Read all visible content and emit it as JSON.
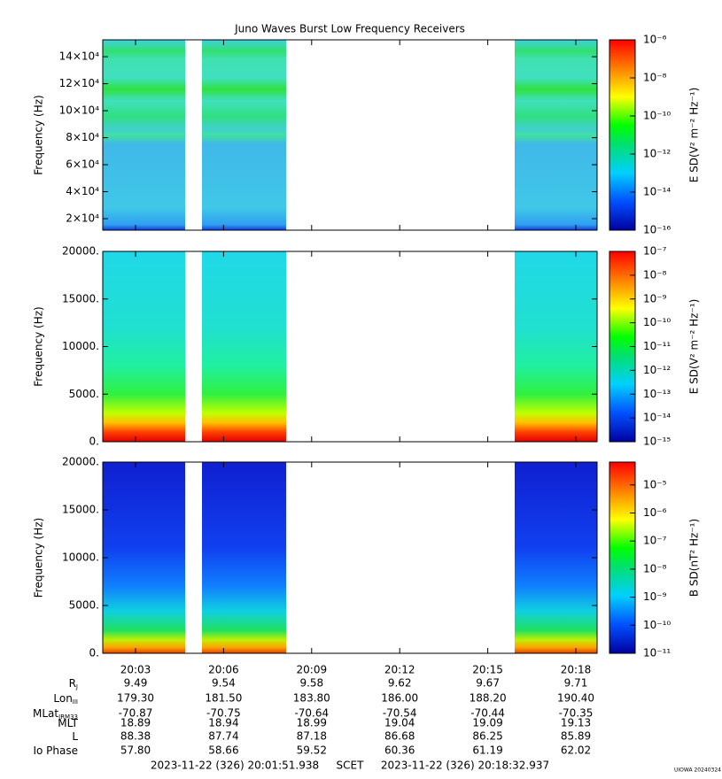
{
  "title": "Juno Waves Burst Low Frequency Receivers",
  "time_axis": {
    "ticks": [
      "20:03",
      "20:06",
      "20:09",
      "20:12",
      "20:15",
      "20:18"
    ]
  },
  "ephemeris": [
    {
      "label": "R",
      "sub": "J",
      "values": [
        "9.49",
        "9.54",
        "9.58",
        "9.62",
        "9.67",
        "9.71"
      ]
    },
    {
      "label": "Lon",
      "sub": "III",
      "values": [
        "179.30",
        "181.50",
        "183.80",
        "186.00",
        "188.20",
        "190.40"
      ]
    },
    {
      "label": "MLat",
      "sub": "JRM33",
      "values": [
        "-70.87",
        "-70.75",
        "-70.64",
        "-70.54",
        "-70.44",
        "-70.35"
      ]
    },
    {
      "label": "MLT",
      "values": [
        "18.89",
        "18.94",
        "18.99",
        "19.04",
        "19.09",
        "19.13"
      ]
    },
    {
      "label": "L",
      "values": [
        "88.38",
        "87.74",
        "87.18",
        "86.68",
        "86.25",
        "85.89"
      ]
    },
    {
      "label": "Io Phase",
      "values": [
        "57.80",
        "58.66",
        "59.52",
        "60.36",
        "61.19",
        "62.02"
      ]
    }
  ],
  "footer": {
    "start": "2023-11-22 (326) 20:01:51.938",
    "middle": "SCET",
    "end": "2023-11-22 (326) 20:18:32.937",
    "credit": "UIOWA 20240324"
  },
  "chart_data": [
    {
      "type": "spectrogram",
      "ylabel": "Frequency (Hz)",
      "ylim": [
        11500,
        152500
      ],
      "yticks": [
        {
          "value": 20000,
          "label": "2×10⁴"
        },
        {
          "value": 40000,
          "label": "4×10⁴"
        },
        {
          "value": 60000,
          "label": "6×10⁴"
        },
        {
          "value": 80000,
          "label": "8×10⁴"
        },
        {
          "value": 100000,
          "label": "10×10⁴"
        },
        {
          "value": 120000,
          "label": "12×10⁴"
        },
        {
          "value": 140000,
          "label": "14×10⁴"
        }
      ],
      "clabel": "E SD(V² m⁻² Hz⁻¹)",
      "clim": [
        1e-16,
        1e-06
      ],
      "cscale": "log",
      "cticks": [
        {
          "value": 1e-16,
          "label": "10⁻¹⁶"
        },
        {
          "value": 1e-14,
          "label": "10⁻¹⁴"
        },
        {
          "value": 1e-12,
          "label": "10⁻¹²"
        },
        {
          "value": 1e-10,
          "label": "10⁻¹⁰"
        },
        {
          "value": 1e-08,
          "label": "10⁻⁸"
        },
        {
          "value": 1e-06,
          "label": "10⁻⁶"
        }
      ]
    },
    {
      "type": "spectrogram",
      "ylabel": "Frequency (Hz)",
      "ylim": [
        0,
        20000
      ],
      "yticks": [
        {
          "value": 0,
          "label": "0."
        },
        {
          "value": 5000,
          "label": "5000."
        },
        {
          "value": 10000,
          "label": "10000."
        },
        {
          "value": 15000,
          "label": "15000."
        },
        {
          "value": 20000,
          "label": "20000."
        }
      ],
      "clabel": "E SD(V² m⁻² Hz⁻¹)",
      "clim": [
        1e-15,
        1e-07
      ],
      "cscale": "log",
      "cticks": [
        {
          "value": 1e-15,
          "label": "10⁻¹⁵"
        },
        {
          "value": 1e-14,
          "label": "10⁻¹⁴"
        },
        {
          "value": 1e-13,
          "label": "10⁻¹³"
        },
        {
          "value": 1e-12,
          "label": "10⁻¹²"
        },
        {
          "value": 1e-11,
          "label": "10⁻¹¹"
        },
        {
          "value": 1e-10,
          "label": "10⁻¹⁰"
        },
        {
          "value": 1e-09,
          "label": "10⁻⁹"
        },
        {
          "value": 1e-08,
          "label": "10⁻⁸"
        },
        {
          "value": 1e-07,
          "label": "10⁻⁷"
        }
      ]
    },
    {
      "type": "spectrogram",
      "ylabel": "Frequency (Hz)",
      "ylim": [
        0,
        20000
      ],
      "yticks": [
        {
          "value": 0,
          "label": "0."
        },
        {
          "value": 5000,
          "label": "5000."
        },
        {
          "value": 10000,
          "label": "10000."
        },
        {
          "value": 15000,
          "label": "15000."
        },
        {
          "value": 20000,
          "label": "20000."
        }
      ],
      "clabel": "B SD(nT² Hz⁻¹)",
      "clim": [
        1e-11,
        6.5e-05
      ],
      "cscale": "log",
      "cticks": [
        {
          "value": 1e-11,
          "label": "10⁻¹¹"
        },
        {
          "value": 1e-10,
          "label": "10⁻¹⁰"
        },
        {
          "value": 1e-09,
          "label": "10⁻⁹"
        },
        {
          "value": 1e-08,
          "label": "10⁻⁸"
        },
        {
          "value": 1e-07,
          "label": "10⁻⁷"
        },
        {
          "value": 1e-06,
          "label": "10⁻⁶"
        },
        {
          "value": 1e-05,
          "label": "10⁻⁵"
        }
      ]
    }
  ]
}
